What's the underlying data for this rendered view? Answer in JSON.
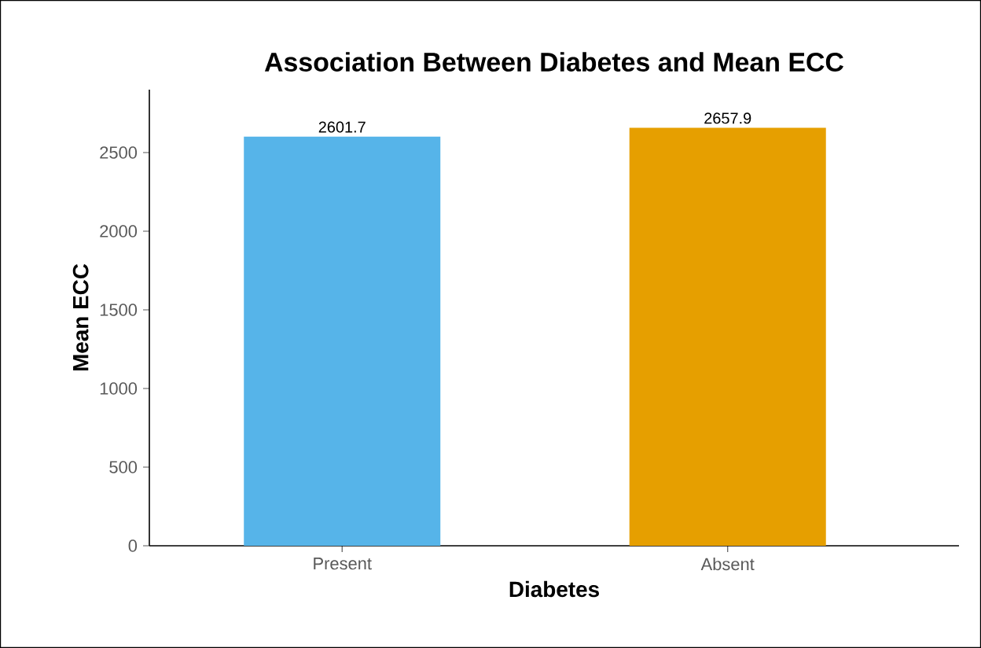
{
  "chart_data": {
    "type": "bar",
    "title": "Association Between Diabetes and Mean ECC",
    "xlabel": "Diabetes",
    "ylabel": "Mean ECC",
    "categories": [
      "Present",
      "Absent"
    ],
    "values": [
      2601.7,
      2657.9
    ],
    "colors": [
      "#56b4e9",
      "#e69f00"
    ],
    "ylim": [
      0,
      2900
    ],
    "yticks": [
      0,
      500,
      1000,
      1500,
      2000,
      2500
    ],
    "data_labels": true,
    "grid": false
  }
}
